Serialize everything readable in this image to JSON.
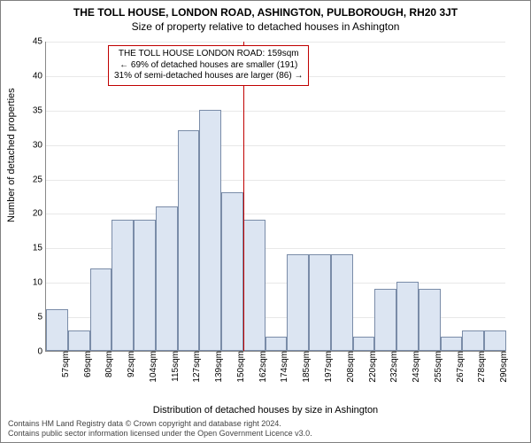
{
  "title": "THE TOLL HOUSE, LONDON ROAD, ASHINGTON, PULBOROUGH, RH20 3JT",
  "subtitle": "Size of property relative to detached houses in Ashington",
  "ylabel": "Number of detached properties",
  "xlabel": "Distribution of detached houses by size in Ashington",
  "footer_line1": "Contains HM Land Registry data © Crown copyright and database right 2024.",
  "footer_line2": "Contains public sector information licensed under the Open Government Licence v3.0.",
  "chart": {
    "type": "histogram",
    "ylim": [
      0,
      45
    ],
    "ytick_step": 5,
    "bar_fill": "#dce5f2",
    "bar_stroke": "#7a8ca8",
    "grid_color": "#e8e8e8",
    "background": "#ffffff",
    "ref_line_color": "#c00000",
    "ref_line_x_index": 9,
    "categories": [
      "57sqm",
      "69sqm",
      "80sqm",
      "92sqm",
      "104sqm",
      "115sqm",
      "127sqm",
      "139sqm",
      "150sqm",
      "162sqm",
      "174sqm",
      "185sqm",
      "197sqm",
      "208sqm",
      "220sqm",
      "232sqm",
      "243sqm",
      "255sqm",
      "267sqm",
      "278sqm",
      "290sqm"
    ],
    "values": [
      6,
      3,
      12,
      19,
      19,
      21,
      32,
      35,
      23,
      19,
      2,
      14,
      14,
      14,
      2,
      9,
      10,
      9,
      2,
      3,
      3
    ],
    "annotation": {
      "line1": "THE TOLL HOUSE LONDON ROAD: 159sqm",
      "line2": "← 69% of detached houses are smaller (191)",
      "line3": "31% of semi-detached houses are larger (86) →"
    },
    "title_fontsize": 12,
    "label_fontsize": 11,
    "tick_fontsize": 10
  }
}
